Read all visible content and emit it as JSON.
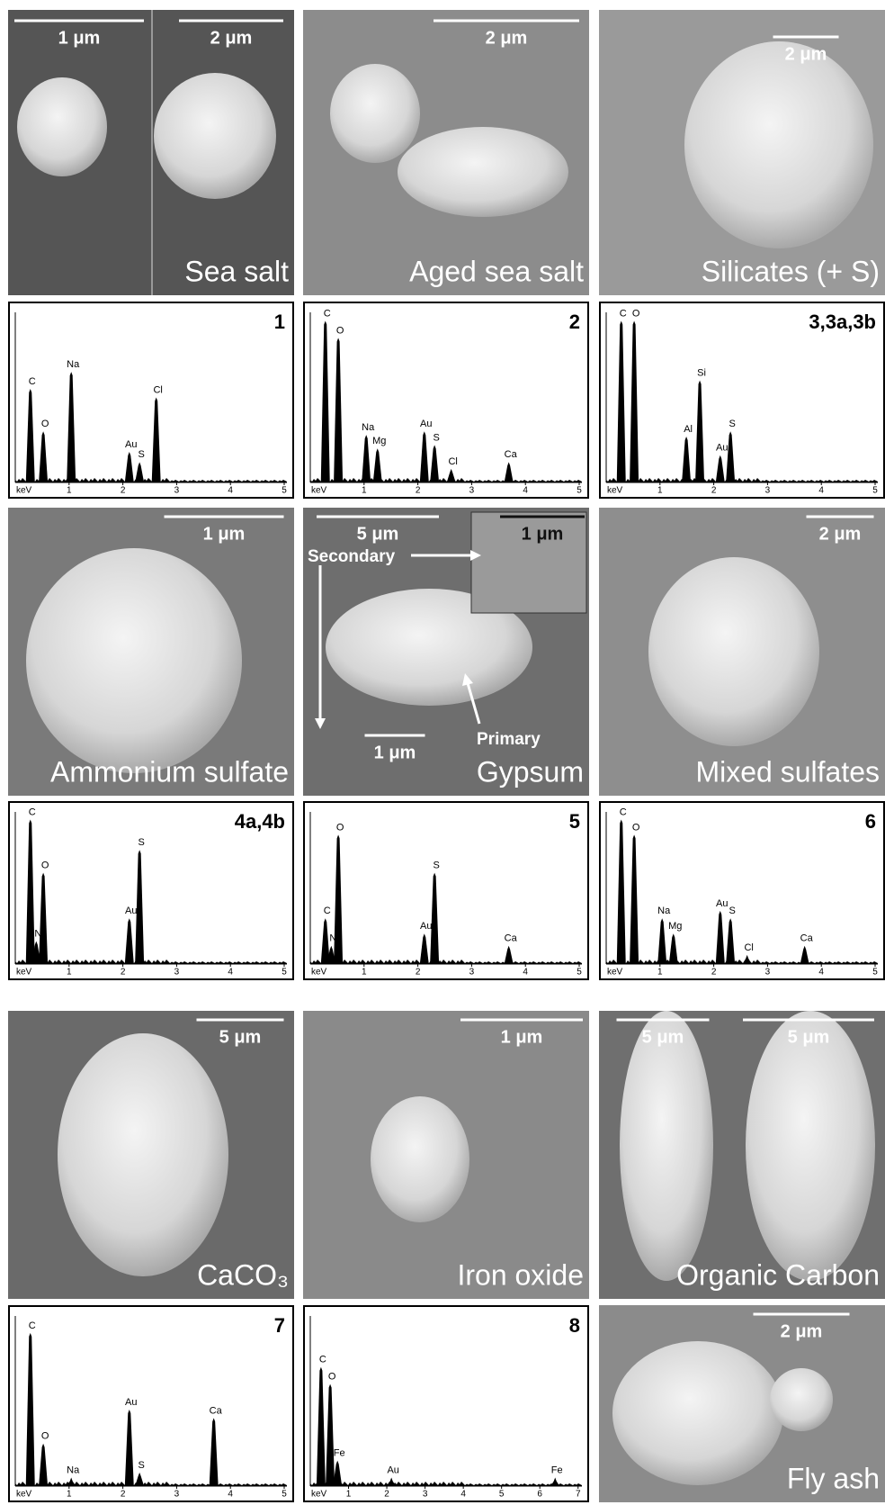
{
  "panels": [
    {
      "kind": "image",
      "scale_bars": [
        "1 μm",
        "2 μm"
      ],
      "caption": "Sea salt"
    },
    {
      "kind": "image",
      "scale_bars": [
        "2 μm"
      ],
      "caption": "Aged sea salt"
    },
    {
      "kind": "image",
      "scale_bars": [
        "2 μm"
      ],
      "caption": "Silicates (+ S)"
    },
    {
      "kind": "spectrum",
      "label": "1",
      "x_label": "keV",
      "xlim": [
        0,
        5.05
      ],
      "xticks": [
        1,
        2,
        3,
        4,
        5
      ],
      "peaks": [
        {
          "element": "C",
          "x": 0.28,
          "height": 0.55
        },
        {
          "element": "O",
          "x": 0.52,
          "height": 0.3
        },
        {
          "element": "Na",
          "x": 1.04,
          "height": 0.65
        },
        {
          "element": "Au",
          "x": 2.12,
          "height": 0.18
        },
        {
          "element": "S",
          "x": 2.31,
          "height": 0.12
        },
        {
          "element": "Cl",
          "x": 2.62,
          "height": 0.5
        }
      ]
    },
    {
      "kind": "spectrum",
      "label": "2",
      "x_label": "keV",
      "xlim": [
        0,
        5.05
      ],
      "xticks": [
        1,
        2,
        3,
        4,
        5
      ],
      "peaks": [
        {
          "element": "C",
          "x": 0.28,
          "height": 0.95
        },
        {
          "element": "O",
          "x": 0.52,
          "height": 0.85
        },
        {
          "element": "Na",
          "x": 1.04,
          "height": 0.28
        },
        {
          "element": "Mg",
          "x": 1.25,
          "height": 0.2
        },
        {
          "element": "Au",
          "x": 2.12,
          "height": 0.3
        },
        {
          "element": "S",
          "x": 2.31,
          "height": 0.22
        },
        {
          "element": "Cl",
          "x": 2.62,
          "height": 0.08
        },
        {
          "element": "Ca",
          "x": 3.69,
          "height": 0.12
        }
      ]
    },
    {
      "kind": "spectrum",
      "label": "3,3a,3b",
      "x_label": "keV",
      "xlim": [
        0,
        5.05
      ],
      "xticks": [
        1,
        2,
        3,
        4,
        5
      ],
      "peaks": [
        {
          "element": "C",
          "x": 0.28,
          "height": 0.95
        },
        {
          "element": "O",
          "x": 0.52,
          "height": 0.95
        },
        {
          "element": "Al",
          "x": 1.49,
          "height": 0.27
        },
        {
          "element": "Si",
          "x": 1.74,
          "height": 0.6
        },
        {
          "element": "Au",
          "x": 2.12,
          "height": 0.16
        },
        {
          "element": "S",
          "x": 2.31,
          "height": 0.3
        }
      ]
    },
    {
      "kind": "image",
      "scale_bars": [
        "1 μm"
      ],
      "caption": "Ammonium sulfate"
    },
    {
      "kind": "image",
      "scale_bars": [
        "5 μm",
        "1 μm",
        "1 μm"
      ],
      "caption": "Gypsum",
      "annotations": [
        "Secondary",
        "Primary"
      ]
    },
    {
      "kind": "image",
      "scale_bars": [
        "2 μm"
      ],
      "caption": "Mixed sulfates"
    },
    {
      "kind": "spectrum",
      "label": "4a,4b",
      "x_label": "keV",
      "xlim": [
        0,
        5.05
      ],
      "xticks": [
        1,
        2,
        3,
        4,
        5
      ],
      "peaks": [
        {
          "element": "C",
          "x": 0.28,
          "height": 0.95
        },
        {
          "element": "N",
          "x": 0.39,
          "height": 0.15
        },
        {
          "element": "O",
          "x": 0.52,
          "height": 0.6
        },
        {
          "element": "Au",
          "x": 2.12,
          "height": 0.3
        },
        {
          "element": "S",
          "x": 2.31,
          "height": 0.75
        }
      ]
    },
    {
      "kind": "spectrum",
      "label": "5",
      "x_label": "keV",
      "xlim": [
        0,
        5.05
      ],
      "xticks": [
        1,
        2,
        3,
        4,
        5
      ],
      "peaks": [
        {
          "element": "C",
          "x": 0.28,
          "height": 0.3
        },
        {
          "element": "N",
          "x": 0.39,
          "height": 0.12
        },
        {
          "element": "O",
          "x": 0.52,
          "height": 0.85
        },
        {
          "element": "Au",
          "x": 2.12,
          "height": 0.2
        },
        {
          "element": "S",
          "x": 2.31,
          "height": 0.6
        },
        {
          "element": "Ca",
          "x": 3.69,
          "height": 0.12
        }
      ]
    },
    {
      "kind": "spectrum",
      "label": "6",
      "x_label": "keV",
      "xlim": [
        0,
        5.05
      ],
      "xticks": [
        1,
        2,
        3,
        4,
        5
      ],
      "peaks": [
        {
          "element": "C",
          "x": 0.28,
          "height": 0.95
        },
        {
          "element": "O",
          "x": 0.52,
          "height": 0.85
        },
        {
          "element": "Na",
          "x": 1.04,
          "height": 0.3
        },
        {
          "element": "Mg",
          "x": 1.25,
          "height": 0.2
        },
        {
          "element": "Au",
          "x": 2.12,
          "height": 0.35
        },
        {
          "element": "S",
          "x": 2.31,
          "height": 0.3
        },
        {
          "element": "Cl",
          "x": 2.62,
          "height": 0.06
        },
        {
          "element": "Ca",
          "x": 3.69,
          "height": 0.12
        }
      ]
    },
    {
      "kind": "image",
      "scale_bars": [
        "5 μm"
      ],
      "caption": "CaCO₃"
    },
    {
      "kind": "image",
      "scale_bars": [
        "1 μm"
      ],
      "caption": "Iron oxide"
    },
    {
      "kind": "image",
      "scale_bars": [
        "5 μm",
        "5 μm"
      ],
      "caption": "Organic Carbon"
    },
    {
      "kind": "spectrum",
      "label": "7",
      "x_label": "keV",
      "xlim": [
        0,
        5.05
      ],
      "xticks": [
        1,
        2,
        3,
        4,
        5
      ],
      "peaks": [
        {
          "element": "C",
          "x": 0.28,
          "height": 0.9
        },
        {
          "element": "O",
          "x": 0.52,
          "height": 0.25
        },
        {
          "element": "Na",
          "x": 1.04,
          "height": 0.05
        },
        {
          "element": "Au",
          "x": 2.12,
          "height": 0.45
        },
        {
          "element": "S",
          "x": 2.31,
          "height": 0.08
        },
        {
          "element": "Ca",
          "x": 3.69,
          "height": 0.4
        }
      ]
    },
    {
      "kind": "spectrum",
      "label": "8",
      "x_label": "keV",
      "xlim": [
        0,
        7.1
      ],
      "xticks": [
        1,
        2,
        3,
        4,
        5,
        6,
        7
      ],
      "peaks": [
        {
          "element": "C",
          "x": 0.28,
          "height": 0.7
        },
        {
          "element": "O",
          "x": 0.52,
          "height": 0.6
        },
        {
          "element": "Fe",
          "x": 0.71,
          "height": 0.15
        },
        {
          "element": "Au",
          "x": 2.12,
          "height": 0.05
        },
        {
          "element": "Fe",
          "x": 6.4,
          "height": 0.05
        }
      ]
    },
    {
      "kind": "image",
      "scale_bars": [
        "2 μm"
      ],
      "caption": "Fly ash"
    }
  ]
}
